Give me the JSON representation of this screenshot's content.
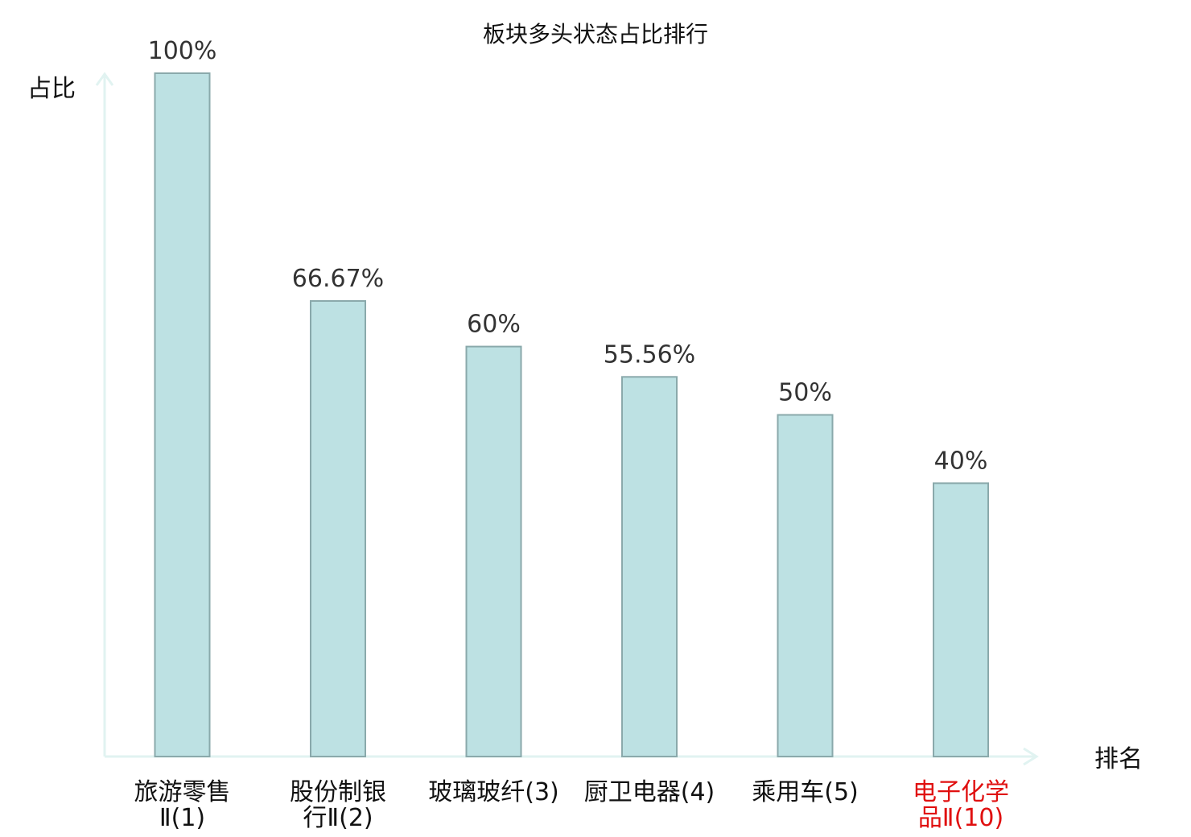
{
  "chart_data": {
    "type": "bar",
    "title": "板块多头状态占比排行",
    "ylabel": "占比",
    "xlabel": "排名",
    "ylim": [
      0,
      100
    ],
    "categories": [
      {
        "lines": [
          "旅游零售",
          "Ⅱ(1)"
        ],
        "value": 100,
        "label": "100%",
        "highlight": false
      },
      {
        "lines": [
          "股份制银",
          "行Ⅱ(2)"
        ],
        "value": 66.67,
        "label": "66.67%",
        "highlight": false
      },
      {
        "lines": [
          "玻璃玻纤(3)"
        ],
        "value": 60,
        "label": "60%",
        "highlight": false
      },
      {
        "lines": [
          "厨卫电器(4)"
        ],
        "value": 55.56,
        "label": "55.56%",
        "highlight": false
      },
      {
        "lines": [
          "乘用车(5)"
        ],
        "value": 50,
        "label": "50%",
        "highlight": false
      },
      {
        "lines": [
          "电子化学",
          "品Ⅱ(10)"
        ],
        "value": 40,
        "label": "40%",
        "highlight": true
      }
    ],
    "grid": false,
    "colors": {
      "bar_fill": "#bde1e3",
      "bar_stroke": "#8aa9ab",
      "axis": "#e1f3f1",
      "highlight_text": "#e01010",
      "normal_text": "#111111"
    }
  }
}
